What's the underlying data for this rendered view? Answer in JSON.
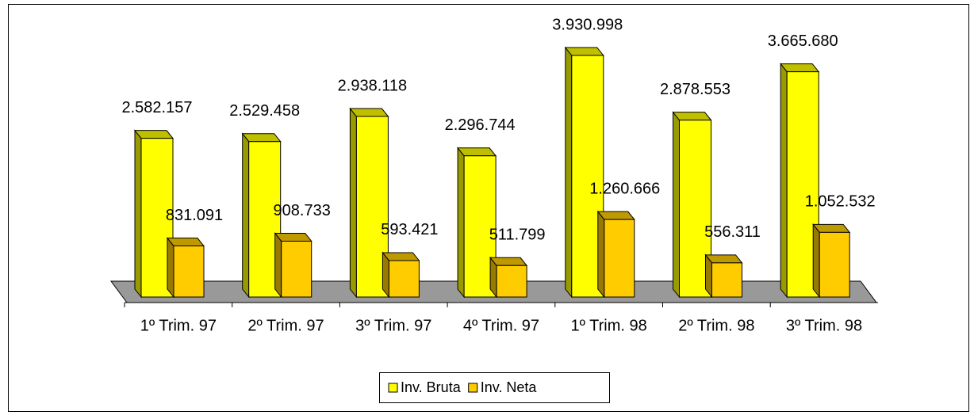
{
  "chart_data": {
    "type": "bar3d",
    "categories": [
      "1º Trim. 97",
      "2º Trim. 97",
      "3º Trim. 97",
      "4º Trim. 97",
      "1º Trim. 98",
      "2º Trim. 98",
      "3º Trim. 98"
    ],
    "series": [
      {
        "name": "Inv. Bruta",
        "color": "#ffff00",
        "values": [
          2582157,
          2529458,
          2938118,
          2296744,
          3930998,
          2878553,
          3665680
        ],
        "value_labels": [
          "2.582.157",
          "2.529.458",
          "2.938.118",
          "2.296.744",
          "3.930.998",
          "2.878.553",
          "3.665.680"
        ]
      },
      {
        "name": "Inv. Neta",
        "color": "#ffcc00",
        "values": [
          831091,
          908733,
          593421,
          511799,
          1260666,
          556311,
          1052532
        ],
        "value_labels": [
          "831.091",
          "908.733",
          "593.421",
          "511.799",
          "1.260.666",
          "556.311",
          "1.052.532"
        ]
      }
    ],
    "legend": "bottom"
  }
}
